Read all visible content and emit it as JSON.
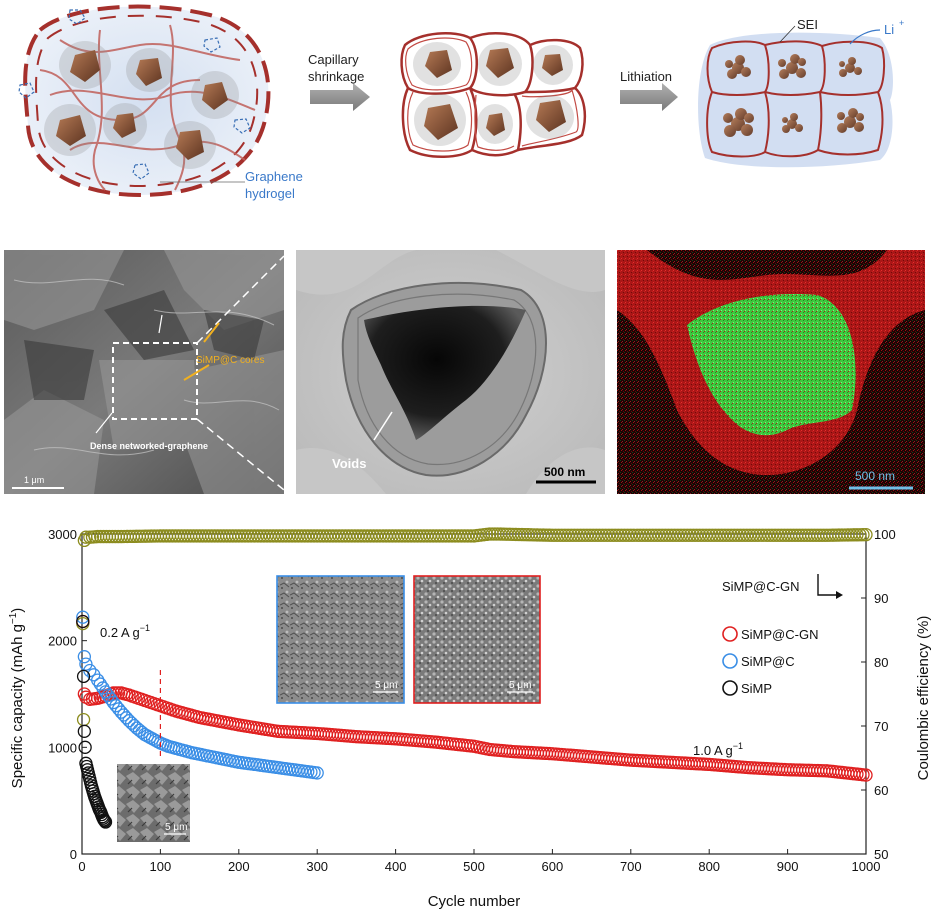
{
  "schematic": {
    "arrow1_label": "Capillary shrinkage",
    "arrow1_line1": "Capillary",
    "arrow1_line2": "shrinkage",
    "arrow2_label": "Lithiation",
    "graphene_line1": "Graphene",
    "graphene_line2": "hydrogel",
    "sei_label": "SEI",
    "li_label": "Li",
    "li_sup": "+"
  },
  "micrographs": {
    "sem": {
      "cores_label": "SiMP@C cores",
      "network_label": "Dense networked-graphene",
      "scale": "1 μm"
    },
    "tem": {
      "voids_label": "Voids",
      "scale": "500 nm"
    },
    "edx": {
      "scale": "500 nm"
    }
  },
  "colors": {
    "graphene": "#a5302c",
    "sei": "#9fb6dd",
    "arrow_gray": "#8c8c8c",
    "annot_orange": "#f0b020",
    "tem_scale_line": "#000000",
    "edx_scale": "#70c0e8",
    "red_series": "#e02020",
    "blue_series": "#3a8ee6",
    "black_series": "#111111",
    "ce_series": "#8c8c1e"
  },
  "chart_data": {
    "type": "scatter",
    "xlabel": "Cycle number",
    "ylabel": "Specific capacity (mAh g",
    "ylabel_sup": "−1",
    "ylabel_close": ")",
    "y2label": "Coulombic efficiency (%)",
    "xlim": [
      0,
      1000
    ],
    "ylim": [
      0,
      3000
    ],
    "y2lim": [
      50,
      100
    ],
    "xticks": [
      0,
      100,
      200,
      300,
      400,
      500,
      600,
      700,
      800,
      900,
      1000
    ],
    "yticks": [
      0,
      1000,
      2000,
      3000
    ],
    "y2ticks": [
      50,
      60,
      70,
      80,
      90,
      100
    ],
    "annotations": {
      "rate_low": "0.2 A g",
      "rate_low_sup": "−1",
      "rate_high": "1.0 A g",
      "rate_high_sup": "−1",
      "ce_series_label": "SiMP@C-GN",
      "inset_scale": "5 μm",
      "marker_cycle": 100
    },
    "legend": {
      "placement": "right",
      "entries": [
        "SiMP@C-GN",
        "SiMP@C",
        "SiMP"
      ]
    },
    "series": [
      {
        "name": "SiMP@C-GN",
        "axis": "left",
        "color": "#e02020",
        "x": [
          1,
          3,
          5,
          10,
          20,
          30,
          40,
          50,
          60,
          80,
          100,
          120,
          150,
          200,
          250,
          300,
          350,
          400,
          450,
          500,
          520,
          550,
          600,
          650,
          700,
          750,
          800,
          850,
          900,
          950,
          1000
        ],
        "values": [
          2180,
          1500,
          1470,
          1450,
          1460,
          1480,
          1510,
          1510,
          1490,
          1440,
          1390,
          1340,
          1280,
          1210,
          1150,
          1130,
          1100,
          1080,
          1050,
          1010,
          980,
          960,
          940,
          910,
          880,
          860,
          840,
          810,
          790,
          780,
          740
        ]
      },
      {
        "name": "SiMP@C",
        "axis": "left",
        "color": "#3a8ee6",
        "x": [
          1,
          3,
          5,
          10,
          15,
          20,
          30,
          40,
          50,
          60,
          70,
          80,
          90,
          100,
          110,
          120,
          140,
          160,
          180,
          200,
          220,
          240,
          260,
          280,
          300
        ],
        "values": [
          2220,
          1850,
          1780,
          1720,
          1680,
          1630,
          1520,
          1420,
          1330,
          1250,
          1180,
          1120,
          1080,
          1040,
          1010,
          990,
          950,
          920,
          890,
          860,
          840,
          820,
          800,
          780,
          760
        ]
      },
      {
        "name": "SiMP",
        "axis": "left",
        "color": "#111111",
        "x": [
          1,
          3,
          5,
          8,
          10,
          12,
          14,
          16,
          18,
          20,
          22,
          24,
          26,
          28,
          30
        ],
        "values": [
          2180,
          1150,
          850,
          760,
          700,
          640,
          590,
          540,
          500,
          460,
          420,
          390,
          350,
          320,
          300
        ]
      },
      {
        "name": "Coulombic efficiency",
        "axis": "right",
        "color": "#8c8c1e",
        "x": [
          1,
          2,
          3,
          5,
          10,
          20,
          50,
          100,
          150,
          200,
          300,
          400,
          500,
          520,
          530,
          600,
          700,
          800,
          900,
          950,
          1000
        ],
        "values": [
          86,
          71,
          99,
          99.5,
          99.5,
          99.6,
          99.6,
          99.7,
          99.7,
          99.7,
          99.7,
          99.7,
          99.7,
          100,
          100,
          99.8,
          99.8,
          99.8,
          99.8,
          99.8,
          99.9
        ]
      }
    ]
  }
}
